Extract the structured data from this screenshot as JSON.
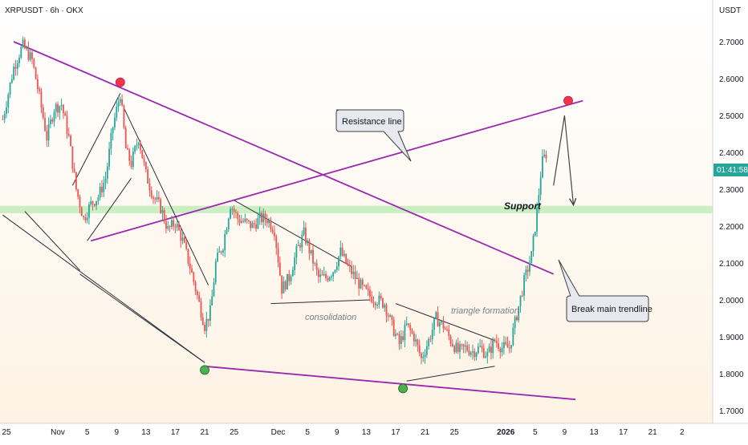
{
  "symbol_header": "XRPUSDT · 6h · OKX",
  "currency": "USDT",
  "price_badge": "01:41:58",
  "annotations": {
    "resistance_line": "Resistance line",
    "break_main_trendline": "Break main trendline",
    "support": "Support",
    "consolidation": "consolidation",
    "triangle_formation": "triangle formation"
  },
  "colors": {
    "bull": "#26a69a",
    "bear": "#ef5350",
    "trendline": "#9c27b0",
    "support_zone": "#b9eab1",
    "background_tint": "#fdf3e4",
    "marker_red": "#f23645",
    "marker_green": "#4caf50",
    "badge": "#26a69a"
  },
  "chart_data": {
    "type": "candlestick",
    "title": "XRPUSDT · 6h · OKX",
    "y_unit": "USDT",
    "y_ticks": [
      2.7,
      2.6,
      2.5,
      2.4,
      2.3,
      2.2,
      2.1,
      2.0,
      1.9,
      1.8,
      1.7
    ],
    "y_tick_labels": [
      "2.7000",
      "2.6000",
      "2.5000",
      "2.4000",
      "2.3000",
      "2.2000",
      "2.1000",
      "2.0000",
      "1.9000",
      "1.8000",
      "1.7000"
    ],
    "ylim": [
      1.68,
      2.78
    ],
    "x_ticks": [
      {
        "label": "25",
        "day": -6
      },
      {
        "label": "Nov",
        "day": 1
      },
      {
        "label": "5",
        "day": 5
      },
      {
        "label": "9",
        "day": 9
      },
      {
        "label": "13",
        "day": 13
      },
      {
        "label": "17",
        "day": 17
      },
      {
        "label": "21",
        "day": 21
      },
      {
        "label": "25",
        "day": 25
      },
      {
        "label": "Dec",
        "day": 31
      },
      {
        "label": "5",
        "day": 35
      },
      {
        "label": "9",
        "day": 39
      },
      {
        "label": "13",
        "day": 43
      },
      {
        "label": "17",
        "day": 47
      },
      {
        "label": "21",
        "day": 51
      },
      {
        "label": "25",
        "day": 55
      },
      {
        "label": "2026",
        "day": 62
      },
      {
        "label": "5",
        "day": 66
      },
      {
        "label": "9",
        "day": 70
      },
      {
        "label": "13",
        "day": 74
      },
      {
        "label": "17",
        "day": 78
      },
      {
        "label": "21",
        "day": 82
      },
      {
        "label": "2",
        "day": 86
      }
    ],
    "price_path": [
      [
        -6.5,
        2.49
      ],
      [
        -5.0,
        2.63
      ],
      [
        -3.8,
        2.69
      ],
      [
        -2.5,
        2.65
      ],
      [
        -1.5,
        2.55
      ],
      [
        -0.5,
        2.44
      ],
      [
        0.5,
        2.52
      ],
      [
        1.5,
        2.53
      ],
      [
        2.5,
        2.44
      ],
      [
        3.5,
        2.3
      ],
      [
        4.5,
        2.22
      ],
      [
        5.5,
        2.26
      ],
      [
        6.5,
        2.28
      ],
      [
        7.5,
        2.33
      ],
      [
        8.5,
        2.47
      ],
      [
        9.5,
        2.56
      ],
      [
        10.3,
        2.4
      ],
      [
        11.0,
        2.37
      ],
      [
        12.0,
        2.44
      ],
      [
        13.0,
        2.34
      ],
      [
        14.0,
        2.28
      ],
      [
        15.0,
        2.25
      ],
      [
        16.0,
        2.19
      ],
      [
        17.0,
        2.21
      ],
      [
        18.0,
        2.16
      ],
      [
        19.0,
        2.09
      ],
      [
        20.0,
        2.01
      ],
      [
        21.0,
        1.93
      ],
      [
        21.8,
        1.97
      ],
      [
        22.5,
        2.1
      ],
      [
        23.5,
        2.15
      ],
      [
        24.5,
        2.26
      ],
      [
        25.5,
        2.22
      ],
      [
        26.5,
        2.21
      ],
      [
        27.5,
        2.2
      ],
      [
        28.5,
        2.22
      ],
      [
        29.5,
        2.22
      ],
      [
        30.5,
        2.19
      ],
      [
        31.5,
        2.03
      ],
      [
        32.5,
        2.06
      ],
      [
        33.5,
        2.13
      ],
      [
        34.5,
        2.18
      ],
      [
        35.5,
        2.12
      ],
      [
        36.5,
        2.06
      ],
      [
        37.5,
        2.06
      ],
      [
        38.5,
        2.08
      ],
      [
        39.5,
        2.13
      ],
      [
        40.5,
        2.09
      ],
      [
        41.5,
        2.06
      ],
      [
        42.5,
        2.03
      ],
      [
        43.5,
        2.01
      ],
      [
        44.5,
        2.0
      ],
      [
        45.5,
        1.99
      ],
      [
        46.5,
        1.93
      ],
      [
        47.5,
        1.88
      ],
      [
        48.5,
        1.93
      ],
      [
        49.5,
        1.9
      ],
      [
        50.5,
        1.84
      ],
      [
        51.5,
        1.89
      ],
      [
        52.5,
        1.95
      ],
      [
        53.5,
        1.93
      ],
      [
        54.5,
        1.89
      ],
      [
        55.5,
        1.86
      ],
      [
        56.5,
        1.87
      ],
      [
        57.5,
        1.86
      ],
      [
        58.5,
        1.87
      ],
      [
        59.5,
        1.85
      ],
      [
        60.5,
        1.89
      ],
      [
        61.5,
        1.87
      ],
      [
        62.5,
        1.87
      ],
      [
        63.5,
        1.96
      ],
      [
        64.5,
        2.05
      ],
      [
        65.5,
        2.12
      ],
      [
        66.2,
        2.23
      ],
      [
        66.9,
        2.37
      ],
      [
        67.6,
        2.4
      ]
    ],
    "trendlines": [
      {
        "name": "main-downtrend",
        "from": [
          -5.0,
          2.7
        ],
        "to": [
          68.5,
          2.07
        ]
      },
      {
        "name": "resistance-line",
        "from": [
          5.5,
          2.16
        ],
        "to": [
          72.5,
          2.54
        ]
      },
      {
        "name": "lower-channel",
        "from": [
          21.0,
          1.82
        ],
        "to": [
          71.5,
          1.73
        ]
      },
      {
        "name": "wedge-lower",
        "from": [
          -6.5,
          2.23
        ],
        "to": [
          21.0,
          1.83
        ]
      },
      {
        "name": "triangle-upper",
        "from": [
          25.0,
          2.27
        ],
        "to": [
          41.0,
          2.09
        ]
      },
      {
        "name": "consolidation-base",
        "from": [
          30.0,
          1.99
        ],
        "to": [
          43.5,
          2.0
        ]
      },
      {
        "name": "triangle-formation-upper",
        "from": [
          47.0,
          1.99
        ],
        "to": [
          60.5,
          1.89
        ]
      },
      {
        "name": "triangle-formation-lower",
        "from": [
          48.5,
          1.78
        ],
        "to": [
          60.5,
          1.82
        ]
      }
    ],
    "swing_lines": [
      [
        [
          3.0,
          2.31
        ],
        [
          9.5,
          2.56
        ]
      ],
      [
        [
          5.0,
          2.16
        ],
        [
          11.0,
          2.33
        ]
      ],
      [
        [
          10.0,
          2.52
        ],
        [
          21.5,
          2.04
        ]
      ],
      [
        [
          -3.5,
          2.24
        ],
        [
          4.0,
          2.08
        ]
      ],
      [
        [
          4.0,
          2.07
        ],
        [
          21.0,
          1.83
        ]
      ]
    ],
    "projection": [
      [
        68.5,
        2.31
      ],
      [
        70.0,
        2.5
      ],
      [
        71.2,
        2.26
      ]
    ],
    "support_zone": [
      2.235,
      2.255
    ],
    "markers": [
      {
        "color": "red",
        "day": 9.5,
        "price": 2.59
      },
      {
        "color": "red",
        "day": 70.5,
        "price": 2.54
      },
      {
        "color": "green",
        "day": 21.0,
        "price": 1.81
      },
      {
        "color": "green",
        "day": 48.0,
        "price": 1.76
      }
    ],
    "last_price": 2.36
  }
}
